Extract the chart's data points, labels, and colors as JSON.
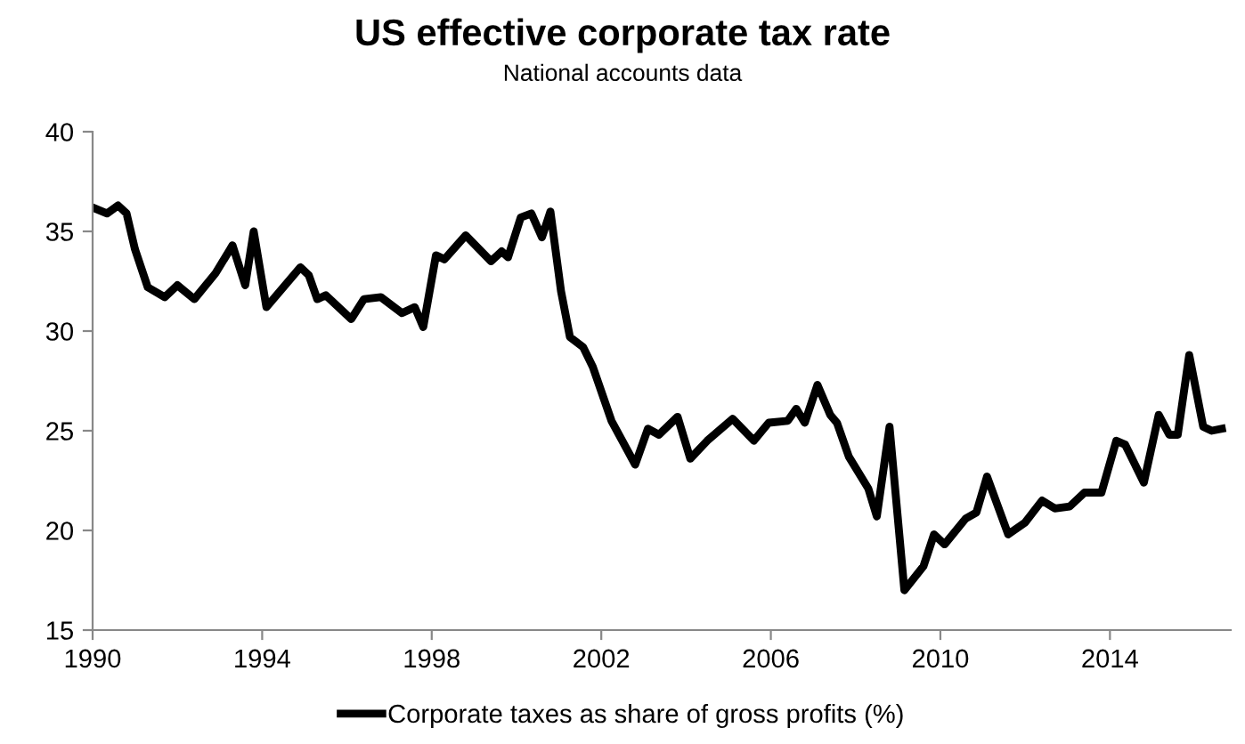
{
  "chart_data": {
    "type": "line",
    "title": "US effective corporate tax rate",
    "subtitle": "National accounts data",
    "xlim": [
      1990,
      2016.85
    ],
    "xticks": [
      1990,
      1994,
      1998,
      2002,
      2006,
      2010,
      2014
    ],
    "ylim": [
      15,
      40
    ],
    "yticks": [
      15,
      20,
      25,
      30,
      35,
      40
    ],
    "grid": false,
    "legend": "bottom",
    "line_style": "solid",
    "marker": "none",
    "series": [
      {
        "name": "Corporate taxes as share of gross profits (%)",
        "color": "#000000",
        "x": [
          1990.0,
          1990.34,
          1990.6,
          1990.8,
          1991.0,
          1991.3,
          1991.7,
          1992.0,
          1992.4,
          1992.9,
          1993.3,
          1993.6,
          1993.8,
          1994.1,
          1994.9,
          1995.1,
          1995.3,
          1995.5,
          1996.1,
          1996.4,
          1996.8,
          1997.3,
          1997.6,
          1997.8,
          1998.1,
          1998.3,
          1998.8,
          1999.4,
          1999.65,
          1999.8,
          2000.1,
          2000.35,
          2000.6,
          2000.8,
          2001.05,
          2001.26,
          2001.57,
          2001.8,
          2002.24,
          2002.8,
          2003.1,
          2003.36,
          2003.8,
          2004.1,
          2004.5,
          2005.1,
          2005.6,
          2005.95,
          2006.4,
          2006.6,
          2006.8,
          2007.1,
          2007.4,
          2007.56,
          2007.84,
          2008.3,
          2008.5,
          2008.8,
          2009.15,
          2009.6,
          2009.85,
          2010.1,
          2010.6,
          2010.85,
          2011.1,
          2011.6,
          2012.0,
          2012.4,
          2012.7,
          2013.05,
          2013.4,
          2013.8,
          2014.15,
          2014.36,
          2014.8,
          2015.15,
          2015.4,
          2015.6,
          2015.87,
          2016.2,
          2016.4,
          2016.64
        ],
        "values": [
          36.2,
          35.9,
          36.3,
          35.9,
          34.1,
          32.2,
          31.7,
          32.3,
          31.6,
          32.9,
          34.3,
          32.3,
          35.0,
          31.2,
          33.2,
          32.8,
          31.6,
          31.8,
          30.6,
          31.6,
          31.7,
          30.9,
          31.2,
          30.2,
          33.8,
          33.6,
          34.8,
          33.5,
          34.0,
          33.7,
          35.7,
          35.9,
          34.7,
          36.0,
          32.0,
          29.7,
          29.2,
          28.2,
          25.5,
          23.3,
          25.1,
          24.8,
          25.7,
          23.6,
          24.5,
          25.6,
          24.5,
          25.4,
          25.5,
          26.1,
          25.4,
          27.3,
          25.8,
          25.4,
          23.7,
          22.1,
          20.7,
          25.2,
          17.0,
          18.2,
          19.8,
          19.3,
          20.6,
          20.9,
          22.7,
          19.8,
          20.4,
          21.5,
          21.1,
          21.2,
          21.9,
          21.9,
          24.5,
          24.3,
          22.4,
          25.8,
          24.8,
          24.8,
          28.8,
          25.2,
          25.0,
          25.1
        ]
      }
    ]
  }
}
